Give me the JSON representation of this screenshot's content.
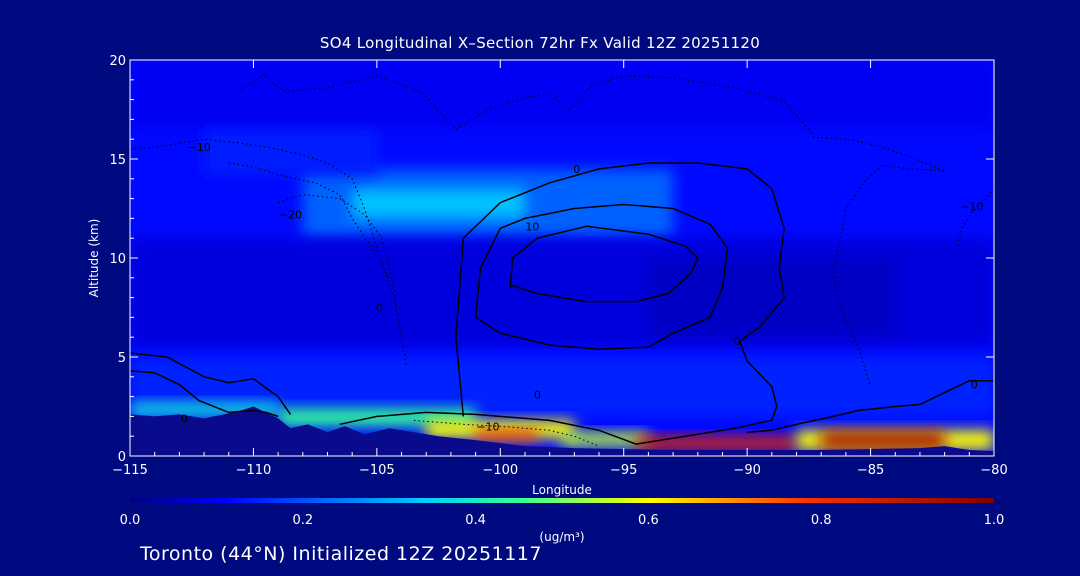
{
  "title": "SO4 Longitudinal X–Section 72hr  Fx Valid 12Z 20251120",
  "footer": "Toronto (44°N) Initialized 12Z 20251117",
  "chart_data": {
    "type": "heatmap",
    "title": "SO4 Longitudinal X–Section 72hr  Fx Valid 12Z 20251120",
    "xlabel": "Longitude",
    "ylabel": "Altitude (km)",
    "xlim": [
      -115,
      -80
    ],
    "ylim": [
      0,
      20
    ],
    "x_ticks": [
      -115,
      -110,
      -105,
      -100,
      -95,
      -90,
      -85,
      -80
    ],
    "x_tick_labels": [
      "−115",
      "−110",
      "−105",
      "−100",
      "−95",
      "−90",
      "−85",
      "−80"
    ],
    "y_ticks": [
      0,
      5,
      10,
      15,
      20
    ],
    "y_tick_labels": [
      "0",
      "5",
      "10",
      "15",
      "20"
    ],
    "colorbar": {
      "label": "(ug/m³)",
      "ticks": [
        0.0,
        0.2,
        0.4,
        0.6,
        0.8,
        1.0
      ],
      "tick_labels": [
        "0.0",
        "0.2",
        "0.4",
        "0.6",
        "0.8",
        "1.0"
      ],
      "colormap": "jet"
    },
    "field_regions": [
      {
        "lon": [
          -115,
          -80
        ],
        "alt": [
          0,
          20
        ],
        "value": 0.12
      },
      {
        "lon": [
          -115,
          -80
        ],
        "alt": [
          16.5,
          20
        ],
        "value": 0.1
      },
      {
        "lon": [
          -108,
          -93
        ],
        "alt": [
          11,
          14.5
        ],
        "value": 0.22
      },
      {
        "lon": [
          -106,
          -99
        ],
        "alt": [
          12,
          13.5
        ],
        "value": 0.33
      },
      {
        "lon": [
          -112,
          -105
        ],
        "alt": [
          14.2,
          16.5
        ],
        "value": 0.14
      },
      {
        "lon": [
          -115,
          -80
        ],
        "alt": [
          5.5,
          11
        ],
        "value": 0.08
      },
      {
        "lon": [
          -94,
          -84
        ],
        "alt": [
          6,
          10
        ],
        "value": 0.06
      },
      {
        "lon": [
          -115,
          -80
        ],
        "alt": [
          2,
          5
        ],
        "value": 0.15
      },
      {
        "lon": [
          -115,
          -109
        ],
        "alt": [
          2,
          2.7
        ],
        "value": 0.38
      },
      {
        "lon": [
          -109,
          -101
        ],
        "alt": [
          1.5,
          2.4
        ],
        "value": 0.45
      },
      {
        "lon": [
          -103,
          -97
        ],
        "alt": [
          0.9,
          1.8
        ],
        "value": 0.6
      },
      {
        "lon": [
          -101,
          -98.5
        ],
        "alt": [
          0.8,
          1.3
        ],
        "value": 0.8
      },
      {
        "lon": [
          -97.5,
          -94
        ],
        "alt": [
          0.5,
          1.2
        ],
        "value": 0.55
      },
      {
        "lon": [
          -94.5,
          -88
        ],
        "alt": [
          0.3,
          1.0
        ],
        "value": 0.85
      },
      {
        "lon": [
          -88,
          -80
        ],
        "alt": [
          0.3,
          1.3
        ],
        "value": 0.6
      },
      {
        "lon": [
          -87,
          -82
        ],
        "alt": [
          0.4,
          1.2
        ],
        "value": 0.93
      }
    ],
    "contours": [
      {
        "level": "0",
        "style": "solid",
        "lon": [
          -101.5,
          -101.8,
          -101.5,
          -100,
          -98,
          -96,
          -94,
          -92,
          -90,
          -89,
          -88.5,
          -88.7,
          -88.5,
          -89.5,
          -90.3,
          -90,
          -89,
          -88.8,
          -89,
          -90.5,
          -92,
          -94.5,
          -96,
          -98,
          -101,
          -103,
          -105,
          -106.5
        ],
        "alt": [
          2,
          6,
          11,
          12.8,
          13.8,
          14.5,
          14.8,
          14.8,
          14.5,
          13.5,
          11.5,
          9.5,
          8,
          6.5,
          5.8,
          4.8,
          3.5,
          2.5,
          1.8,
          1.4,
          1.1,
          0.6,
          1.3,
          1.8,
          2.1,
          2.2,
          2.0,
          1.6
        ]
      },
      {
        "level": "10",
        "style": "solid",
        "lon": [
          -101,
          -100.8,
          -100,
          -99,
          -97,
          -95,
          -93,
          -91.5,
          -90.8,
          -91,
          -91.5,
          -93,
          -94,
          -96,
          -98,
          -100,
          -101
        ],
        "alt": [
          7,
          9.5,
          11.5,
          12,
          12.5,
          12.7,
          12.5,
          11.7,
          10.5,
          8.5,
          7,
          6.2,
          5.5,
          5.4,
          5.6,
          6.2,
          7
        ]
      },
      {
        "level": "",
        "style": "solid",
        "lon": [
          -99.6,
          -99.5,
          -98.5,
          -96.5,
          -94,
          -92.5,
          -92,
          -92.3,
          -93.2,
          -94.5,
          -96.5,
          -98.5,
          -99.5,
          -99.6
        ],
        "alt": [
          8.5,
          10,
          11,
          11.6,
          11.2,
          10.6,
          10,
          9.2,
          8.2,
          7.8,
          7.8,
          8.2,
          8.6,
          8.5
        ]
      },
      {
        "level": "0",
        "style": "solid",
        "lon": [
          -115,
          -114,
          -113,
          -112.2,
          -111,
          -110,
          -109.5,
          -109
        ],
        "alt": [
          4.3,
          4.2,
          3.6,
          2.8,
          2.2,
          2.3,
          2.2,
          2.0
        ]
      },
      {
        "level": "0",
        "style": "solid",
        "lon": [
          -115,
          -113.5,
          -112,
          -111,
          -110,
          -109,
          -108.5
        ],
        "alt": [
          5.2,
          5.0,
          4.0,
          3.7,
          3.9,
          3.0,
          2.1
        ]
      },
      {
        "level": "0",
        "style": "solid",
        "lon": [
          -90,
          -89,
          -88,
          -86.5,
          -85.5,
          -84,
          -83,
          -82,
          -81,
          -80
        ],
        "alt": [
          1.2,
          1.3,
          1.6,
          2.0,
          2.3,
          2.5,
          2.6,
          3.2,
          3.8,
          3.8
        ]
      },
      {
        "level": "-10",
        "style": "dotted",
        "lon": [
          -115,
          -114,
          -113,
          -112,
          -110.5,
          -109,
          -108,
          -107,
          -106,
          -105.5,
          -105,
          -104.3,
          -104,
          -103.8
        ],
        "alt": [
          15.5,
          15.6,
          15.8,
          16.0,
          15.8,
          15.5,
          15.2,
          14.8,
          14.0,
          12.5,
          10.5,
          8.0,
          6.0,
          4.5
        ]
      },
      {
        "level": "-20",
        "style": "dotted",
        "lon": [
          -109,
          -108.5,
          -108,
          -106.5,
          -105.5,
          -104.8,
          -104.5,
          -104.3,
          -104.2
        ],
        "alt": [
          12.8,
          13.0,
          13.2,
          13.0,
          12.2,
          11.0,
          9.5,
          8.5,
          7.5
        ]
      },
      {
        "level": "",
        "style": "dotted",
        "lon": [
          -111,
          -110,
          -109,
          -107.5,
          -106.5,
          -106,
          -105.2,
          -104.5
        ],
        "alt": [
          14.8,
          14.6,
          14.2,
          13.8,
          13.2,
          12.0,
          10.5,
          9.0
        ]
      },
      {
        "level": "-10",
        "style": "dotted",
        "lon": [
          -103.5,
          -101.5,
          -100,
          -98,
          -97,
          -96
        ],
        "alt": [
          1.8,
          1.6,
          1.5,
          1.3,
          1.0,
          0.5
        ]
      },
      {
        "level": "",
        "style": "dotted",
        "lon": [
          -110.5,
          -109.5,
          -109.3,
          -108.7,
          -107,
          -105,
          -103.2,
          -102.5,
          -101.8
        ],
        "alt": [
          18.5,
          19.3,
          18.9,
          18.4,
          18.6,
          19.2,
          18.4,
          17.4,
          16.5
        ]
      },
      {
        "level": "",
        "style": "dotted",
        "lon": [
          -101.8,
          -100.5,
          -99,
          -98,
          -97.2
        ],
        "alt": [
          16.5,
          17.5,
          18.1,
          18.3,
          17.5
        ]
      },
      {
        "level": "",
        "style": "dotted",
        "lon": [
          -97.2,
          -96.3,
          -95,
          -93,
          -90.5,
          -88.5,
          -87.5,
          -87.3,
          -86,
          -84.5,
          -83,
          -82
        ],
        "alt": [
          17.5,
          18.7,
          19.2,
          19.1,
          18.6,
          17.9,
          16.5,
          16.1,
          16.0,
          15.6,
          14.9,
          14.4
        ]
      },
      {
        "level": "",
        "style": "dotted",
        "lon": [
          -82,
          -83.5,
          -84.5,
          -85.3,
          -86,
          -86.2,
          -86.5,
          -86.4,
          -85.5,
          -85
        ],
        "alt": [
          14.4,
          14.5,
          14.7,
          13.8,
          12.5,
          11.0,
          9.5,
          8.0,
          5.5,
          3.5
        ]
      },
      {
        "level": "-10",
        "style": "dotted",
        "lon": [
          -80,
          -80.4,
          -80.9,
          -81.3,
          -81.5
        ],
        "alt": [
          13.5,
          12.9,
          12.3,
          11.5,
          10.5
        ]
      }
    ],
    "contour_labels": [
      {
        "text": "−10",
        "lon": -112.2,
        "alt": 15.6
      },
      {
        "text": "−20",
        "lon": -108.5,
        "alt": 12.2
      },
      {
        "text": "0",
        "lon": -96.9,
        "alt": 14.5
      },
      {
        "text": "10",
        "lon": -98.7,
        "alt": 11.6
      },
      {
        "text": "0",
        "lon": -104.9,
        "alt": 7.5
      },
      {
        "text": "0",
        "lon": -90.4,
        "alt": 5.8
      },
      {
        "text": "0",
        "lon": -98.5,
        "alt": 3.1
      },
      {
        "text": "0",
        "lon": -112.8,
        "alt": 1.9
      },
      {
        "text": "−10",
        "lon": -100.5,
        "alt": 1.5
      },
      {
        "text": "0",
        "lon": -80.8,
        "alt": 3.6
      },
      {
        "text": "−10",
        "lon": -80.9,
        "alt": 12.6
      }
    ],
    "terrain": {
      "lon": [
        -115,
        -114,
        -113,
        -112,
        -111.2,
        -110.5,
        -110,
        -109.5,
        -109,
        -108.5,
        -107.8,
        -107,
        -106.3,
        -105.5,
        -104.5,
        -103.5,
        -102.5,
        -101,
        -99,
        -97,
        -95,
        -93,
        -91,
        -89,
        -87,
        -85,
        -83,
        -82,
        -81,
        -80
      ],
      "alt": [
        2.1,
        2.0,
        2.1,
        1.9,
        2.1,
        2.3,
        2.5,
        2.2,
        1.9,
        1.4,
        1.6,
        1.2,
        1.5,
        1.1,
        1.4,
        1.2,
        1.0,
        0.8,
        0.5,
        0.4,
        0.35,
        0.3,
        0.3,
        0.3,
        0.3,
        0.35,
        0.4,
        0.5,
        0.3,
        0.25
      ]
    }
  }
}
